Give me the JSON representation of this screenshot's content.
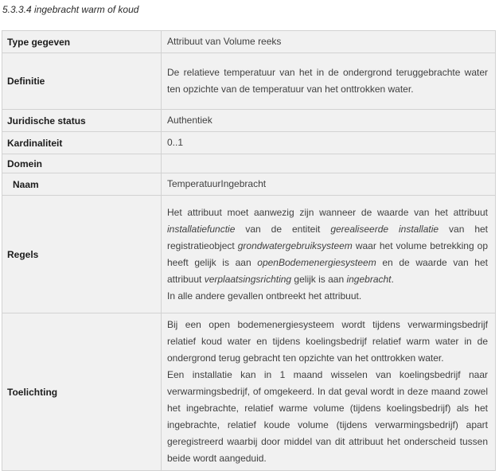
{
  "page": {
    "title": "5.3.3.4 ingebracht warm of koud"
  },
  "colors": {
    "cell_background": "#f1f1f1",
    "inner_border": "#d2d2d2",
    "outer_border": "#6d6d6d",
    "column_divider": "#c8c8c8",
    "body_text": "#3f3f3f",
    "label_text": "#1c1c1c"
  },
  "table": {
    "rows": [
      {
        "id": "type-gegeven",
        "label": "Type gegeven",
        "indent": false,
        "justify": false,
        "height": 26,
        "paragraphs": [
          [
            {
              "t": "Attribuut van Volume reeks"
            }
          ]
        ]
      },
      {
        "id": "definitie",
        "label": "Definitie",
        "indent": false,
        "justify": true,
        "height": 71,
        "paragraphs": [
          [
            {
              "t": "De relatieve temperatuur van het in de ondergrond teruggebrachte water ten opzichte van de temperatuur van het onttrokken water."
            }
          ]
        ]
      },
      {
        "id": "juridische-status",
        "label": "Juridische status",
        "indent": false,
        "justify": false,
        "height": 26,
        "paragraphs": [
          [
            {
              "t": "Authentiek"
            }
          ]
        ]
      },
      {
        "id": "kardinaliteit",
        "label": "Kardinaliteit",
        "indent": false,
        "justify": false,
        "height": 26,
        "paragraphs": [
          [
            {
              "t": "0..1"
            }
          ]
        ]
      },
      {
        "id": "domein",
        "label": "Domein",
        "indent": false,
        "justify": false,
        "height": 24,
        "paragraphs": [
          [
            {
              "t": ""
            }
          ]
        ]
      },
      {
        "id": "naam",
        "label": "Naam",
        "indent": true,
        "justify": false,
        "height": 26,
        "paragraphs": [
          [
            {
              "t": "TemperatuurIngebracht"
            }
          ]
        ]
      },
      {
        "id": "regels",
        "label": "Regels",
        "indent": false,
        "justify": true,
        "height": 148,
        "paragraphs": [
          [
            {
              "t": "Het attribuut moet aanwezig zijn wanneer de waarde van het attribuut "
            },
            {
              "t": "installatiefunctie",
              "i": true
            },
            {
              "t": " van de entiteit "
            },
            {
              "t": "gerealiseerde installatie",
              "i": true
            },
            {
              "t": " van het registratieobject "
            },
            {
              "t": "grondwatergebruiksysteem",
              "i": true
            },
            {
              "t": " waar het volume betrekking op heeft gelijk is aan "
            },
            {
              "t": "openBodemenergiesysteem",
              "i": true
            },
            {
              "t": " en de waarde van het attribuut "
            },
            {
              "t": "verplaatsingsrichting",
              "i": true
            },
            {
              "t": " gelijk is aan "
            },
            {
              "t": "ingebracht",
              "i": true
            },
            {
              "t": "."
            }
          ],
          [
            {
              "t": "In alle andere gevallen ontbreekt het attribuut."
            }
          ]
        ]
      },
      {
        "id": "toelichting",
        "label": "Toelichting",
        "indent": false,
        "justify": true,
        "height": 198,
        "paragraphs": [
          [
            {
              "t": "Bij een open bodemenergiesysteem wordt tijdens verwarmingsbedrijf relatief koud water en tijdens koelingsbedrijf relatief warm water in de ondergrond terug gebracht ten opzichte van het onttrokken water."
            }
          ],
          [
            {
              "t": "Een installatie kan in 1 maand wisselen van koelingsbedrijf naar verwarmingsbedrijf, of omgekeerd. In dat geval wordt in deze maand zowel het ingebrachte, relatief warme volume (tijdens koelingsbedrijf) als het ingebrachte, relatief koude volume (tijdens verwarmingsbedrijf) apart geregistreerd waarbij door middel van dit attribuut het onderscheid tussen beide wordt aangeduid."
            }
          ]
        ]
      }
    ]
  }
}
